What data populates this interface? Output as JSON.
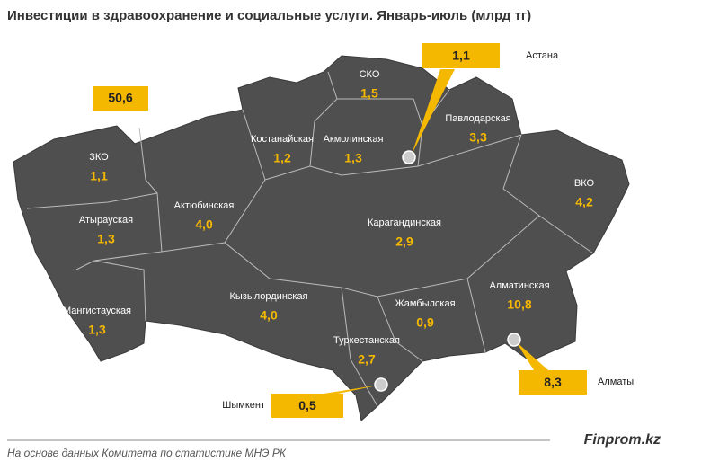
{
  "title": "Инвестиции  в здравоохранение и социальные услуги. Январь-июль (млрд тг)",
  "total": "50,6",
  "regions": [
    {
      "name": "ЗКО",
      "value": "1,1"
    },
    {
      "name": "Атырауская",
      "value": "1,3"
    },
    {
      "name": "Мангистауская",
      "value": "1,3"
    },
    {
      "name": "Актюбинская",
      "value": "4,0"
    },
    {
      "name": "Костанайская",
      "value": "1,2"
    },
    {
      "name": "СКО",
      "value": "1,5"
    },
    {
      "name": "Акмолинская",
      "value": "1,3"
    },
    {
      "name": "Павлодарская",
      "value": "3,3"
    },
    {
      "name": "ВКО",
      "value": "4,2"
    },
    {
      "name": "Карагандинская",
      "value": "2,9"
    },
    {
      "name": "Кызылординская",
      "value": "4,0"
    },
    {
      "name": "Жамбылская",
      "value": "0,9"
    },
    {
      "name": "Алматинская",
      "value": "10,8"
    },
    {
      "name": "Туркестанская",
      "value": "2,7"
    }
  ],
  "cities": [
    {
      "name": "Астана",
      "value": "1,1"
    },
    {
      "name": "Алматы",
      "value": "8,3"
    },
    {
      "name": "Шымкент",
      "value": "0,5"
    }
  ],
  "footer": {
    "note": "На основе данных Комитета по статистике МНЭ РК",
    "source": "Finprom.kz"
  }
}
